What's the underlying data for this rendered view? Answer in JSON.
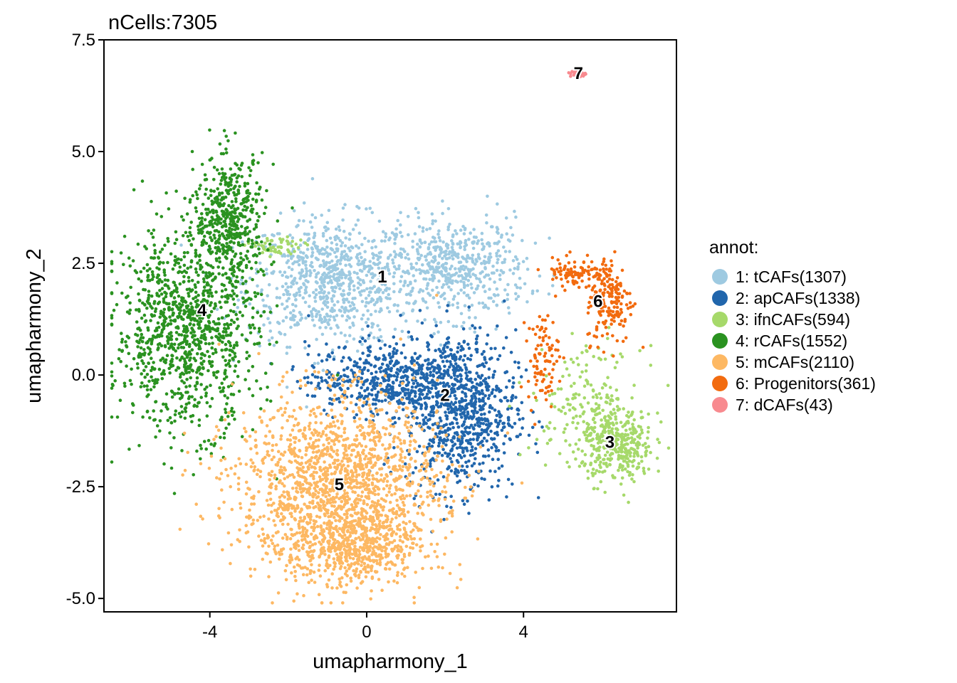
{
  "chart_data": {
    "type": "scatter",
    "title": "nCells:7305",
    "xlabel": "umapharmony_1",
    "ylabel": "umapharmony_2",
    "xlim": [
      -6.7,
      7.9
    ],
    "ylim": [
      -5.3,
      7.5
    ],
    "xticks": [
      -4,
      0,
      4
    ],
    "xtick_labels": [
      "-4",
      "0",
      "4"
    ],
    "yticks": [
      -5.0,
      -2.5,
      0.0,
      2.5,
      5.0,
      7.5
    ],
    "ytick_labels": [
      "-5.0",
      "-2.5",
      "0.0",
      "2.5",
      "5.0",
      "7.5"
    ],
    "grid": false,
    "legend_title": "annot:",
    "legend_position": "right",
    "series": [
      {
        "name": "1: tCAFs(1307)",
        "cluster": "1",
        "count": 1307,
        "color": "#9ECAE1",
        "label_pos": [
          0.4,
          2.2
        ],
        "blobs": [
          {
            "cx": -0.9,
            "cy": 2.1,
            "sx": 1.1,
            "sy": 0.7,
            "w": 0.6
          },
          {
            "cx": 2.3,
            "cy": 2.4,
            "sx": 0.9,
            "sy": 0.55,
            "w": 0.4
          }
        ]
      },
      {
        "name": "2: apCAFs(1338)",
        "cluster": "2",
        "count": 1338,
        "color": "#2166AC",
        "label_pos": [
          2.0,
          -0.45
        ],
        "blobs": [
          {
            "cx": 2.4,
            "cy": -0.8,
            "sx": 0.7,
            "sy": 0.9,
            "w": 0.6
          },
          {
            "cx": 0.5,
            "cy": -0.1,
            "sx": 1.0,
            "sy": 0.4,
            "w": 0.4
          }
        ]
      },
      {
        "name": "3: ifnCAFs(594)",
        "cluster": "3",
        "count": 594,
        "color": "#A6D96A",
        "label_pos": [
          6.2,
          -1.5
        ],
        "blobs": [
          {
            "cx": 6.4,
            "cy": -1.6,
            "sx": 0.45,
            "sy": 0.4,
            "w": 0.6
          },
          {
            "cx": 5.6,
            "cy": -0.6,
            "sx": 0.7,
            "sy": 0.6,
            "w": 0.3
          },
          {
            "cx": -2.3,
            "cy": 2.85,
            "sx": 0.35,
            "sy": 0.12,
            "w": 0.1
          }
        ]
      },
      {
        "name": "4: rCAFs(1552)",
        "cluster": "4",
        "count": 1552,
        "color": "#2A9220",
        "label_pos": [
          -4.2,
          1.45
        ],
        "blobs": [
          {
            "cx": -4.6,
            "cy": 1.0,
            "sx": 0.9,
            "sy": 1.1,
            "w": 0.7
          },
          {
            "cx": -3.5,
            "cy": 3.5,
            "sx": 0.45,
            "sy": 0.7,
            "w": 0.3
          }
        ]
      },
      {
        "name": "5: mCAFs(2110)",
        "cluster": "5",
        "count": 2110,
        "color": "#FDB863",
        "label_pos": [
          -0.7,
          -2.45
        ],
        "blobs": [
          {
            "cx": -0.7,
            "cy": -2.5,
            "sx": 1.3,
            "sy": 1.0,
            "w": 0.8
          },
          {
            "cx": -0.3,
            "cy": -3.9,
            "sx": 0.8,
            "sy": 0.4,
            "w": 0.2
          }
        ]
      },
      {
        "name": "6: Progenitors(361)",
        "cluster": "6",
        "count": 361,
        "color": "#F26B0F",
        "label_pos": [
          5.9,
          1.65
        ],
        "blobs": [
          {
            "cx": 6.2,
            "cy": 1.7,
            "sx": 0.3,
            "sy": 0.5,
            "w": 0.5
          },
          {
            "cx": 5.3,
            "cy": 2.3,
            "sx": 0.4,
            "sy": 0.15,
            "w": 0.25
          },
          {
            "cx": 4.5,
            "cy": 0.4,
            "sx": 0.2,
            "sy": 0.5,
            "w": 0.25
          }
        ]
      },
      {
        "name": "7: dCAFs(43)",
        "cluster": "7",
        "count": 43,
        "color": "#F88A8F",
        "label_pos": [
          5.4,
          6.75
        ],
        "blobs": [
          {
            "cx": 5.4,
            "cy": 6.75,
            "sx": 0.1,
            "sy": 0.04,
            "w": 1.0
          }
        ]
      }
    ]
  }
}
